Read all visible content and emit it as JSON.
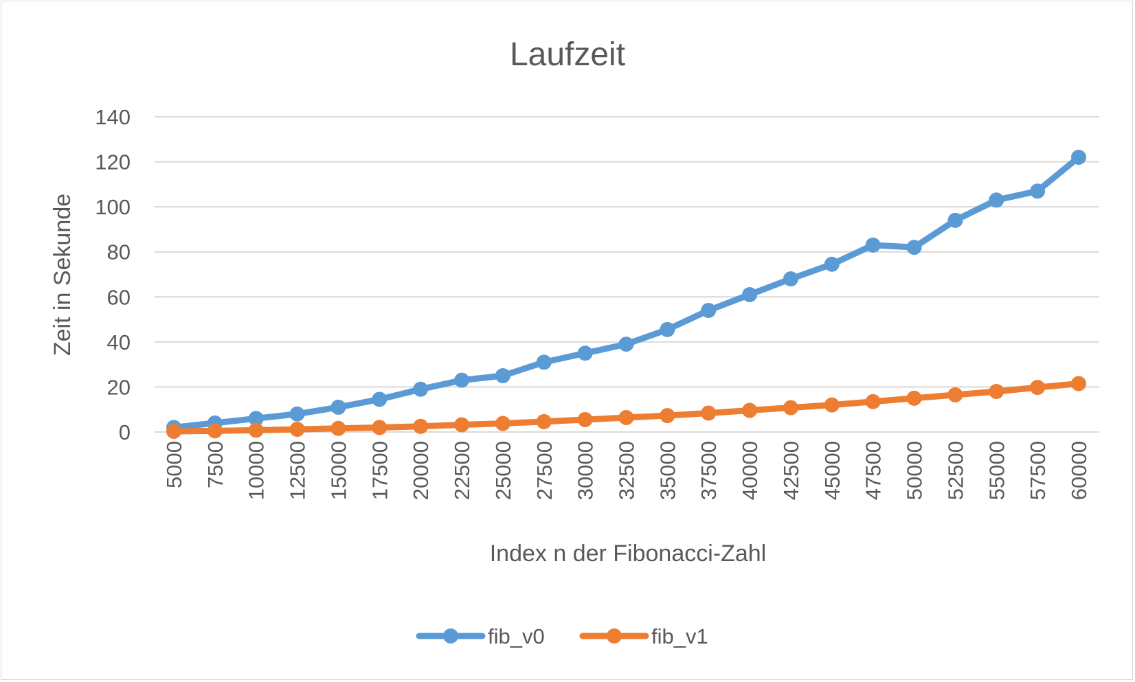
{
  "chart_data": {
    "type": "line",
    "title": "Laufzeit",
    "xlabel": "Index n der Fibonacci-Zahl",
    "ylabel": "Zeit in Sekunde",
    "ylim": [
      0,
      140
    ],
    "yticks": [
      "0",
      "20",
      "40",
      "60",
      "80",
      "100",
      "120",
      "140"
    ],
    "categories": [
      "5000",
      "7500",
      "10000",
      "12500",
      "15000",
      "17500",
      "20000",
      "22500",
      "25000",
      "27500",
      "30000",
      "32500",
      "35000",
      "37500",
      "40000",
      "42500",
      "45000",
      "47500",
      "50000",
      "52500",
      "55000",
      "57500",
      "60000"
    ],
    "grid": true,
    "legend_position": "bottom",
    "series": [
      {
        "name": "fib_v0",
        "color": "#5b9bd5",
        "values": [
          2,
          4,
          6,
          8,
          11,
          14.5,
          19,
          23,
          25,
          31,
          35,
          39,
          45.5,
          54,
          61,
          68,
          74.5,
          83,
          82,
          94,
          103,
          107,
          122
        ]
      },
      {
        "name": "fib_v1",
        "color": "#ed7d31",
        "values": [
          0.3,
          0.5,
          0.8,
          1.2,
          1.6,
          2,
          2.5,
          3.2,
          3.8,
          4.6,
          5.5,
          6.4,
          7.3,
          8.4,
          9.6,
          10.8,
          12,
          13.5,
          15,
          16.5,
          18,
          19.8,
          21.5
        ]
      }
    ]
  }
}
